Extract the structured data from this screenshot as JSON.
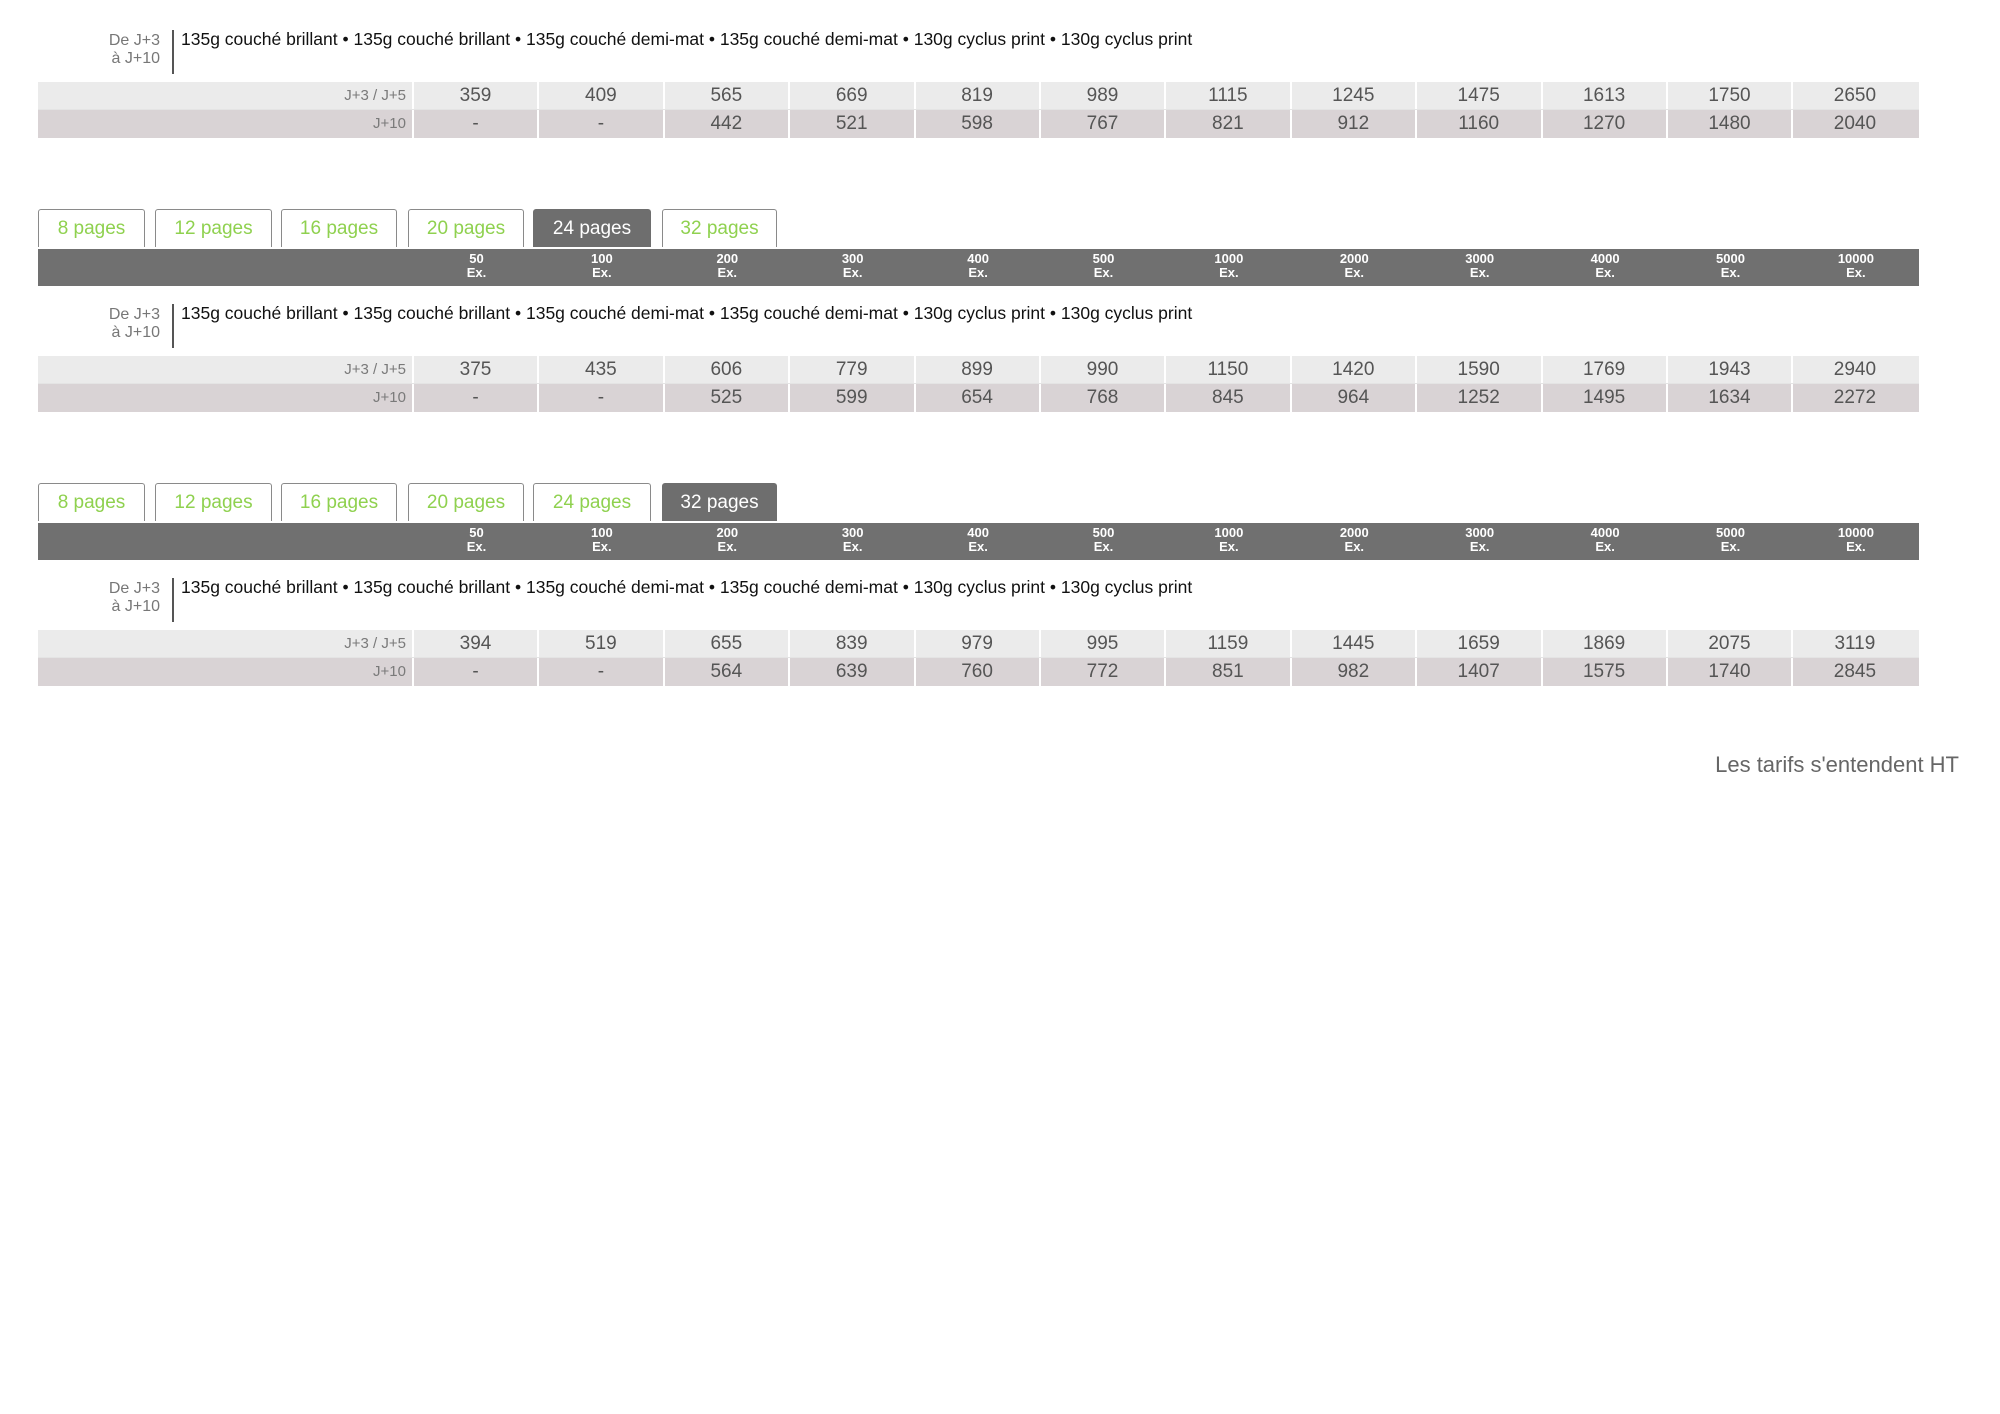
{
  "tabs": [
    "8 pages",
    "12 pages",
    "16 pages",
    "20 pages",
    "24 pages",
    "32 pages"
  ],
  "columns": [
    {
      "qty": "50",
      "unit": "Ex."
    },
    {
      "qty": "100",
      "unit": "Ex."
    },
    {
      "qty": "200",
      "unit": "Ex."
    },
    {
      "qty": "300",
      "unit": "Ex."
    },
    {
      "qty": "400",
      "unit": "Ex."
    },
    {
      "qty": "500",
      "unit": "Ex."
    },
    {
      "qty": "1000",
      "unit": "Ex."
    },
    {
      "qty": "2000",
      "unit": "Ex."
    },
    {
      "qty": "3000",
      "unit": "Ex."
    },
    {
      "qty": "4000",
      "unit": "Ex."
    },
    {
      "qty": "5000",
      "unit": "Ex."
    },
    {
      "qty": "10000",
      "unit": "Ex."
    }
  ],
  "colors": {
    "accent_green": "#8fd14f",
    "header_gray": "#707070",
    "row1": "#ebebeb",
    "row2": "#d9d3d5"
  },
  "blocks": [
    {
      "show_tabs": false,
      "active_tab": null,
      "delay_label": [
        "De J+3",
        "à J+10"
      ],
      "paper": "135g couché brillant  •  135g couché brillant  •  135g couché demi-mat  •  135g couché demi-mat  •  130g cyclus print  •  130g cyclus print",
      "rows": [
        {
          "label": "J+3 / J+5",
          "values": [
            "359",
            "409",
            "565",
            "669",
            "819",
            "989",
            "1115",
            "1245",
            "1475",
            "1613",
            "1750",
            "2650"
          ]
        },
        {
          "label": "J+10",
          "values": [
            "-",
            "-",
            "442",
            "521",
            "598",
            "767",
            "821",
            "912",
            "1160",
            "1270",
            "1480",
            "2040"
          ]
        }
      ]
    },
    {
      "show_tabs": true,
      "active_tab": 4,
      "delay_label": [
        "De J+3",
        "à J+10"
      ],
      "paper": "135g couché brillant  •  135g couché brillant  •  135g couché demi-mat  •  135g couché demi-mat  •  130g cyclus print  •  130g cyclus print",
      "rows": [
        {
          "label": "J+3 / J+5",
          "values": [
            "375",
            "435",
            "606",
            "779",
            "899",
            "990",
            "1150",
            "1420",
            "1590",
            "1769",
            "1943",
            "2940"
          ]
        },
        {
          "label": "J+10",
          "values": [
            "-",
            "-",
            "525",
            "599",
            "654",
            "768",
            "845",
            "964",
            "1252",
            "1495",
            "1634",
            "2272"
          ]
        }
      ]
    },
    {
      "show_tabs": true,
      "active_tab": 5,
      "delay_label": [
        "De J+3",
        "à J+10"
      ],
      "paper": "135g couché brillant  •  135g couché brillant  •  135g couché demi-mat  •  135g couché demi-mat  •  130g cyclus print  •  130g cyclus print",
      "rows": [
        {
          "label": "J+3 / J+5",
          "values": [
            "394",
            "519",
            "655",
            "839",
            "979",
            "995",
            "1159",
            "1445",
            "1659",
            "1869",
            "2075",
            "3119"
          ]
        },
        {
          "label": "J+10",
          "values": [
            "-",
            "-",
            "564",
            "639",
            "760",
            "772",
            "851",
            "982",
            "1407",
            "1575",
            "1740",
            "2845"
          ]
        }
      ]
    }
  ],
  "footer": "Les tarifs s'entendent HT"
}
